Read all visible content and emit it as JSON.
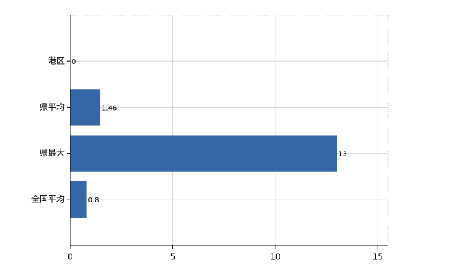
{
  "chart_data": {
    "type": "bar",
    "orientation": "horizontal",
    "categories": [
      "港区",
      "県平均",
      "県最大",
      "全国平均"
    ],
    "values": [
      0,
      1.46,
      13,
      0.8
    ],
    "color": "#3767a6",
    "xlim": [
      0,
      15.5
    ],
    "xticks": [
      0,
      5,
      10,
      15
    ],
    "grid": true
  }
}
